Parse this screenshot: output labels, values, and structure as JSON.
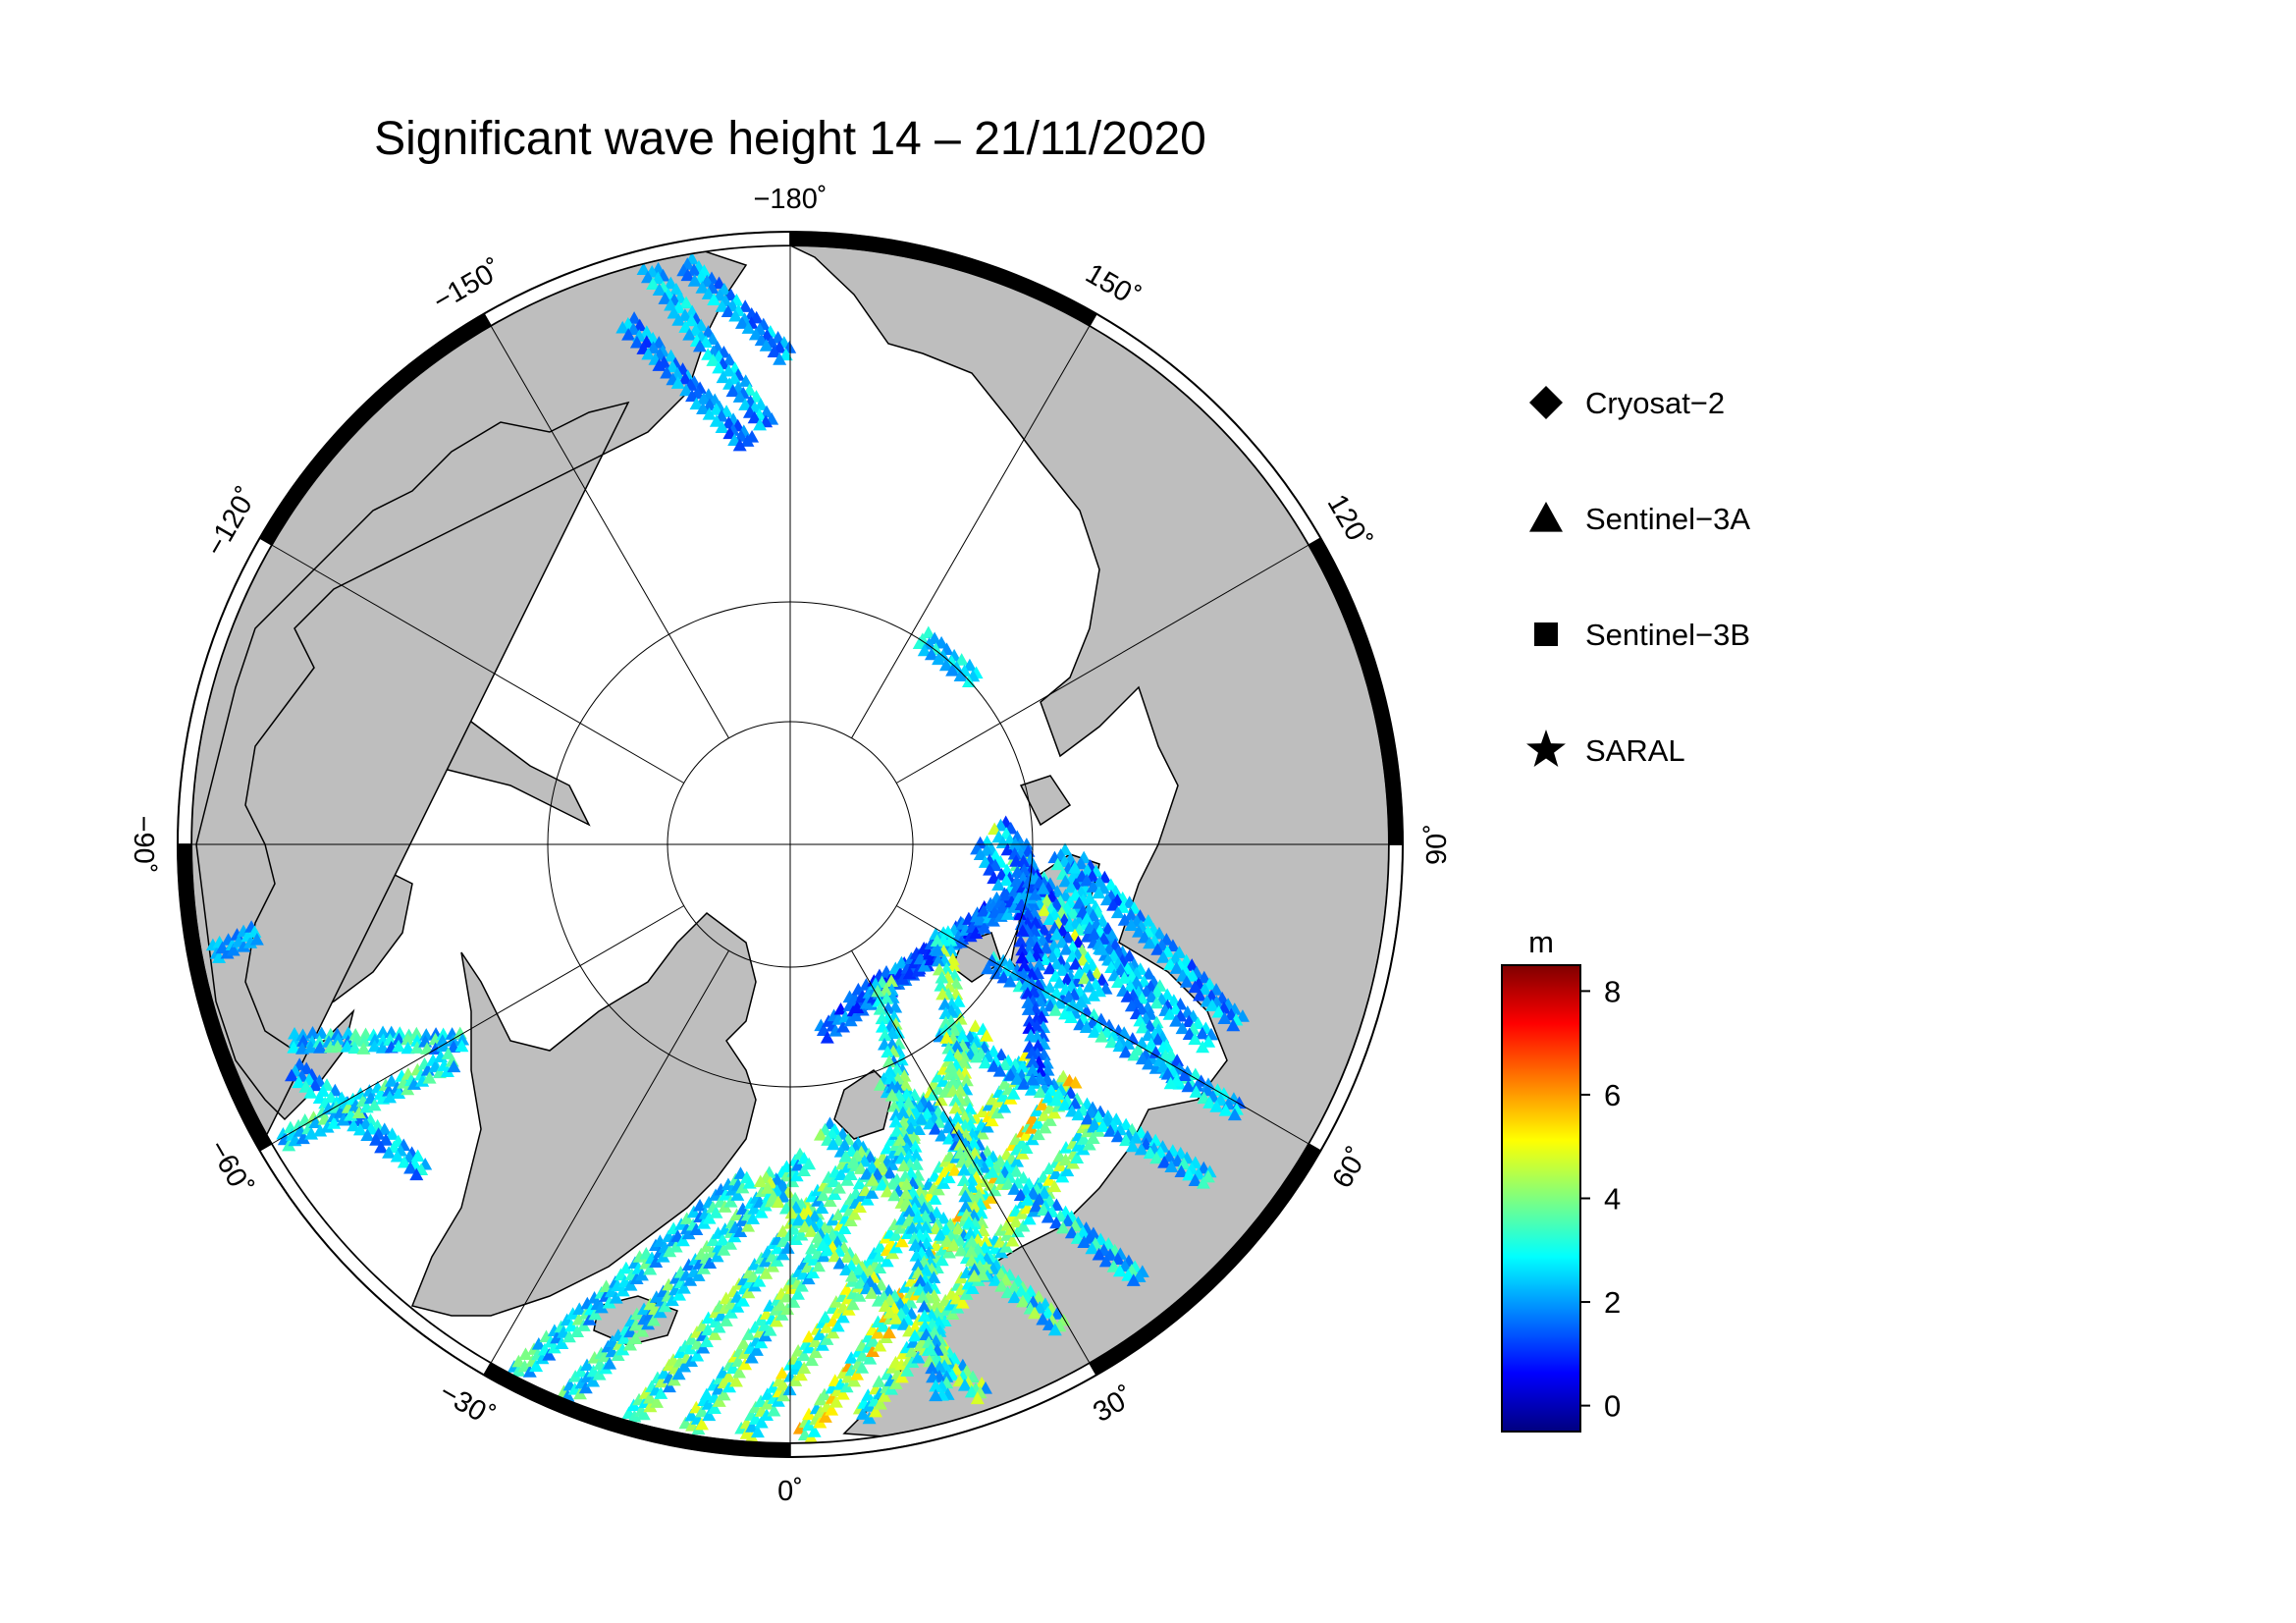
{
  "title": "Significant wave height 14 – 21/11/2020",
  "longitude_labels": [
    {
      "lon": -180,
      "text": "−180˚"
    },
    {
      "lon": 150,
      "text": "150˚"
    },
    {
      "lon": 120,
      "text": "120˚"
    },
    {
      "lon": 90,
      "text": "90˚"
    },
    {
      "lon": 60,
      "text": "60˚"
    },
    {
      "lon": 30,
      "text": "30˚"
    },
    {
      "lon": 0,
      "text": "0˚"
    },
    {
      "lon": -30,
      "text": "−30˚"
    },
    {
      "lon": -60,
      "text": "−60˚"
    },
    {
      "lon": -90,
      "text": "−90˚"
    },
    {
      "lon": -120,
      "text": "−120˚"
    },
    {
      "lon": -150,
      "text": "−150˚"
    }
  ],
  "legend": [
    {
      "label": "Cryosat−2",
      "symbol": "diamond"
    },
    {
      "label": "Sentinel−3A",
      "symbol": "triangle"
    },
    {
      "label": "Sentinel−3B",
      "symbol": "square"
    },
    {
      "label": "SARAL",
      "symbol": "star"
    }
  ],
  "colorbar": {
    "unit": "m",
    "min": -0.5,
    "max": 8.5,
    "ticks": [
      0,
      2,
      4,
      6,
      8
    ],
    "tick_labels": [
      "0",
      "2",
      "4",
      "6",
      "8"
    ],
    "colors": [
      "#00007f",
      "#0000ff",
      "#007fff",
      "#00ffff",
      "#7fff7f",
      "#ffff00",
      "#ff7f00",
      "#ff0000",
      "#7f0000"
    ]
  },
  "colors": {
    "land": "#bebebe",
    "ocean_ice": "#ffffff",
    "coast": "#000000"
  }
}
